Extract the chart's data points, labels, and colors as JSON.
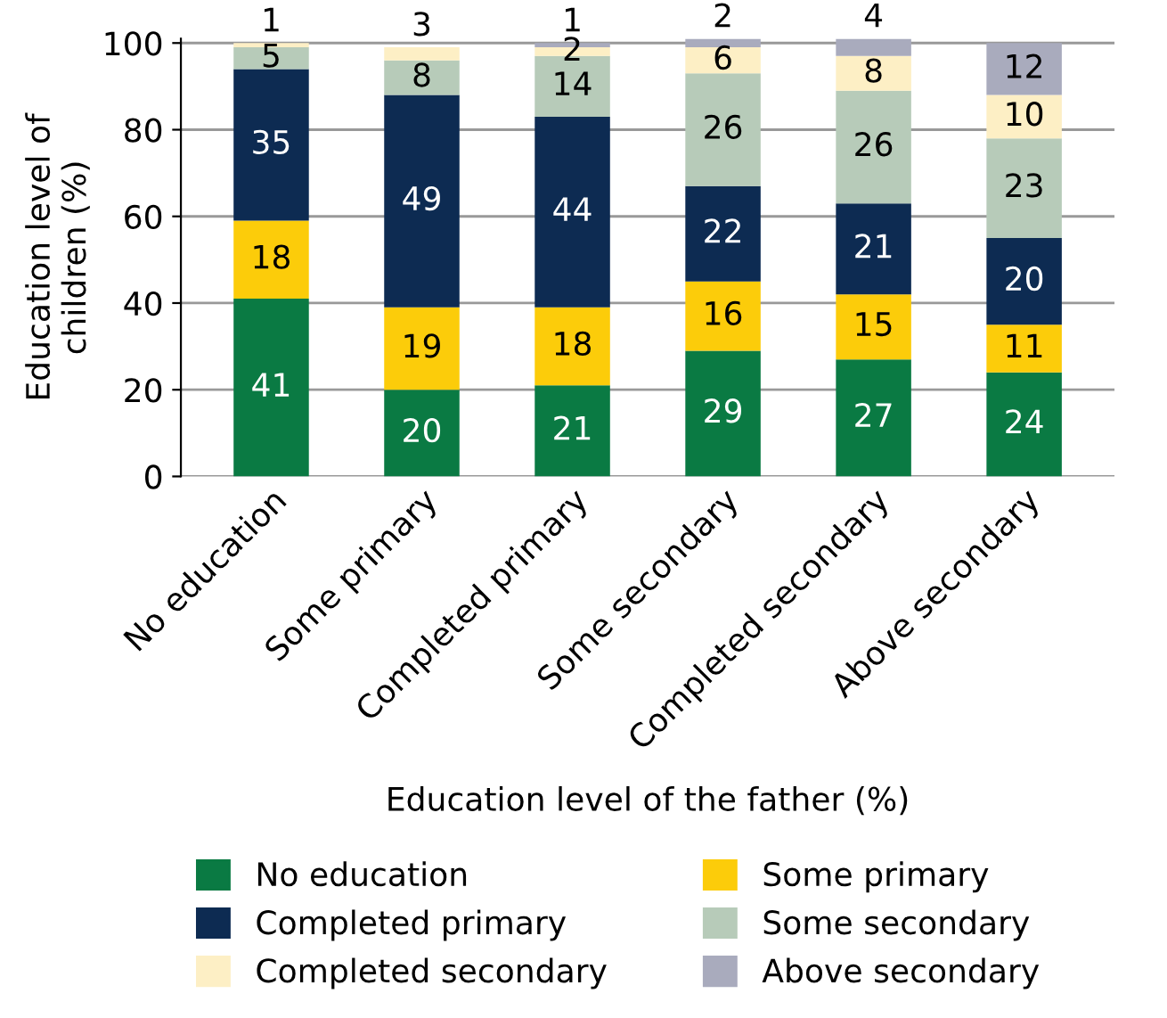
{
  "chart_data": {
    "type": "bar",
    "stacked": true,
    "xlabel": "Education level of the father (%)",
    "ylabel": "Education level of\nchildren (%)",
    "categories": [
      "No education",
      "Some primary",
      "Completed primary",
      "Some secondary",
      "Completed secondary",
      "Above secondary"
    ],
    "series": [
      {
        "name": "No education",
        "color": "#0a7a43",
        "values": [
          41,
          20,
          21,
          29,
          27,
          24
        ]
      },
      {
        "name": "Some primary",
        "color": "#fccc0a",
        "values": [
          18,
          19,
          18,
          16,
          15,
          11
        ]
      },
      {
        "name": "Completed primary",
        "color": "#0d2b52",
        "values": [
          35,
          49,
          44,
          22,
          21,
          20
        ]
      },
      {
        "name": "Some secondary",
        "color": "#b7cbb9",
        "values": [
          5,
          8,
          14,
          26,
          26,
          23
        ]
      },
      {
        "name": "Completed secondary",
        "color": "#fdefc5",
        "values": [
          1,
          3,
          2,
          6,
          8,
          10
        ]
      },
      {
        "name": "Above secondary",
        "color": "#a9abbd",
        "values": [
          null,
          null,
          1,
          2,
          4,
          12
        ]
      }
    ],
    "data_labels": true,
    "ylim": [
      0,
      101
    ],
    "yticks": [
      0,
      20,
      40,
      60,
      80,
      100
    ],
    "grid": "y",
    "legend": "bottom"
  }
}
